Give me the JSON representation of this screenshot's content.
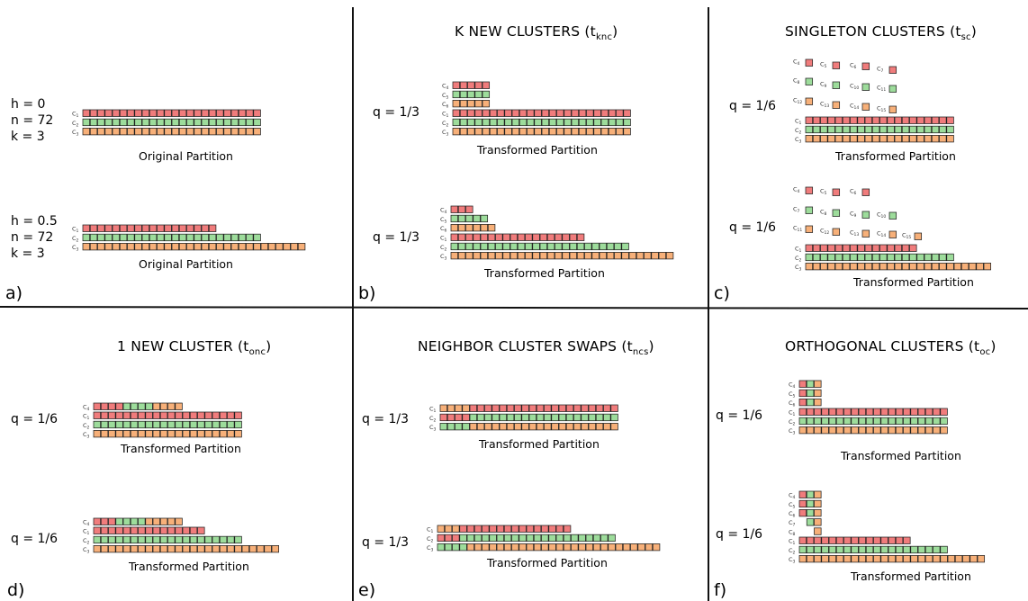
{
  "colors": {
    "red": "#f07c7c",
    "green": "#9ddc9b",
    "orange": "#f7b079",
    "border": "#222222"
  },
  "panels": {
    "a": {
      "letter": "a)",
      "top": {
        "lines": [
          "h = 0",
          "n = 72",
          "k = 3"
        ],
        "caption": "Original Partition",
        "rows": [
          [
            "C1",
            "r",
            24
          ],
          [
            "C2",
            "g",
            24
          ],
          [
            "C3",
            "o",
            24
          ]
        ]
      },
      "bottom": {
        "lines": [
          "h = 0.5",
          "n = 72",
          "k = 3"
        ],
        "caption": "Original Partition",
        "rows": [
          [
            "C1",
            "r",
            18
          ],
          [
            "C2",
            "g",
            24
          ],
          [
            "C3",
            "o",
            30
          ]
        ]
      }
    },
    "b": {
      "letter": "b)",
      "title": "K NEW CLUSTERS (t",
      "title_sub": "knc",
      "top": {
        "q": "q = 1/3",
        "caption": "Transformed Partition",
        "stack": [
          [
            "C4",
            "r",
            5
          ],
          [
            "C5",
            "g",
            5
          ],
          [
            "C6",
            "o",
            5
          ]
        ],
        "rows": [
          [
            "C1",
            "r",
            24
          ],
          [
            "C2",
            "g",
            24
          ],
          [
            "C3",
            "o",
            24
          ]
        ]
      },
      "bottom": {
        "q": "q = 1/3",
        "caption": "Transformed Partition",
        "stack": [
          [
            "C4",
            "r",
            3
          ],
          [
            "C5",
            "g",
            5
          ],
          [
            "C6",
            "o",
            6
          ]
        ],
        "rows": [
          [
            "C1",
            "r",
            18
          ],
          [
            "C2",
            "g",
            24
          ],
          [
            "C3",
            "o",
            30
          ]
        ]
      }
    },
    "c": {
      "letter": "c)",
      "title": "SINGLETON CLUSTERS (t",
      "title_sub": "sc",
      "top": {
        "q": "q = 1/6",
        "caption": "Transformed Partition",
        "singles": [
          [
            [
              "C4",
              "r"
            ],
            [
              "C5",
              "r"
            ],
            [
              "C6",
              "r"
            ],
            [
              "C7",
              "r"
            ]
          ],
          [
            [
              "C8",
              "g"
            ],
            [
              "C9",
              "g"
            ],
            [
              "C10",
              "g"
            ],
            [
              "C11",
              "g"
            ]
          ],
          [
            [
              "C12",
              "o"
            ],
            [
              "C13",
              "o"
            ],
            [
              "C14",
              "o"
            ],
            [
              "C15",
              "o"
            ]
          ]
        ],
        "rows": [
          [
            "C1",
            "r",
            20
          ],
          [
            "C2",
            "g",
            20
          ],
          [
            "C3",
            "o",
            20
          ]
        ]
      },
      "bottom": {
        "q": "q = 1/6",
        "caption": "Transformed Partition",
        "singles": [
          [
            [
              "C4",
              "r"
            ],
            [
              "C5",
              "r"
            ],
            [
              "C6",
              "r"
            ]
          ],
          [
            [
              "C7",
              "g"
            ],
            [
              "C8",
              "g"
            ],
            [
              "C9",
              "g"
            ],
            [
              "C10",
              "g"
            ]
          ],
          [
            [
              "C11",
              "o"
            ],
            [
              "C12",
              "o"
            ],
            [
              "C13",
              "o"
            ],
            [
              "C14",
              "o"
            ],
            [
              "C15",
              "o"
            ]
          ]
        ],
        "rows": [
          [
            "C1",
            "r",
            15
          ],
          [
            "C2",
            "g",
            20
          ],
          [
            "C3",
            "o",
            25
          ]
        ]
      }
    },
    "d": {
      "letter": "d)",
      "title": "1 NEW CLUSTER (t",
      "title_sub": "onc",
      "top": {
        "q": "q = 1/6",
        "caption": "Transformed Partition",
        "mixed": [
          "C4",
          [
            "r",
            4
          ],
          [
            "g",
            4
          ],
          [
            "o",
            4
          ]
        ],
        "rows": [
          [
            "C1",
            "r",
            20
          ],
          [
            "C2",
            "g",
            20
          ],
          [
            "C3",
            "o",
            20
          ]
        ]
      },
      "bottom": {
        "q": "q = 1/6",
        "caption": "Transformed Partition",
        "mixed": [
          "C4",
          [
            "r",
            3
          ],
          [
            "g",
            4
          ],
          [
            "o",
            5
          ]
        ],
        "rows": [
          [
            "C1",
            "r",
            15
          ],
          [
            "C2",
            "g",
            20
          ],
          [
            "C3",
            "o",
            25
          ]
        ]
      }
    },
    "e": {
      "letter": "e)",
      "title": "NEIGHBOR CLUSTER SWAPS (t",
      "title_sub": "ncs",
      "top": {
        "q": "q = 1/3",
        "caption": "Transformed Partition",
        "swaps": [
          [
            "C1",
            [
              [
                "o",
                4
              ],
              [
                "r",
                20
              ]
            ]
          ],
          [
            "C2",
            [
              [
                "r",
                4
              ],
              [
                "g",
                20
              ]
            ]
          ],
          [
            "C3",
            [
              [
                "g",
                4
              ],
              [
                "o",
                20
              ]
            ]
          ]
        ]
      },
      "bottom": {
        "q": "q = 1/3",
        "caption": "Transformed Partition",
        "swaps": [
          [
            "C1",
            [
              [
                "o",
                3
              ],
              [
                "r",
                15
              ]
            ]
          ],
          [
            "C2",
            [
              [
                "r",
                3
              ],
              [
                "g",
                21
              ]
            ]
          ],
          [
            "C3",
            [
              [
                "g",
                4
              ],
              [
                "o",
                26
              ]
            ]
          ]
        ]
      }
    },
    "f": {
      "letter": "f)",
      "title": "ORTHOGONAL CLUSTERS (t",
      "title_sub": "oc",
      "top": {
        "q": "q = 1/6",
        "caption": "Transformed Partition",
        "ortho": [
          [
            "C4",
            [
              "r",
              "g",
              "o"
            ]
          ],
          [
            "C5",
            [
              "r",
              "g",
              "o"
            ]
          ],
          [
            "C6",
            [
              "r",
              "g",
              "o"
            ]
          ]
        ],
        "rows": [
          [
            "C1",
            "r",
            20
          ],
          [
            "C2",
            "g",
            20
          ],
          [
            "C3",
            "o",
            20
          ]
        ]
      },
      "bottom": {
        "q": "q = 1/6",
        "caption": "Transformed Partition",
        "ortho": [
          [
            "C4",
            [
              "r",
              "g",
              "o"
            ]
          ],
          [
            "C5",
            [
              "r",
              "g",
              "o"
            ]
          ],
          [
            "C6",
            [
              "r",
              "g",
              "o"
            ]
          ],
          [
            "C7",
            [
              null,
              "g",
              "o"
            ]
          ],
          [
            "C8",
            [
              null,
              null,
              "o"
            ]
          ]
        ],
        "rows": [
          [
            "C1",
            "r",
            15
          ],
          [
            "C2",
            "g",
            20
          ],
          [
            "C3",
            "o",
            25
          ]
        ]
      }
    }
  }
}
